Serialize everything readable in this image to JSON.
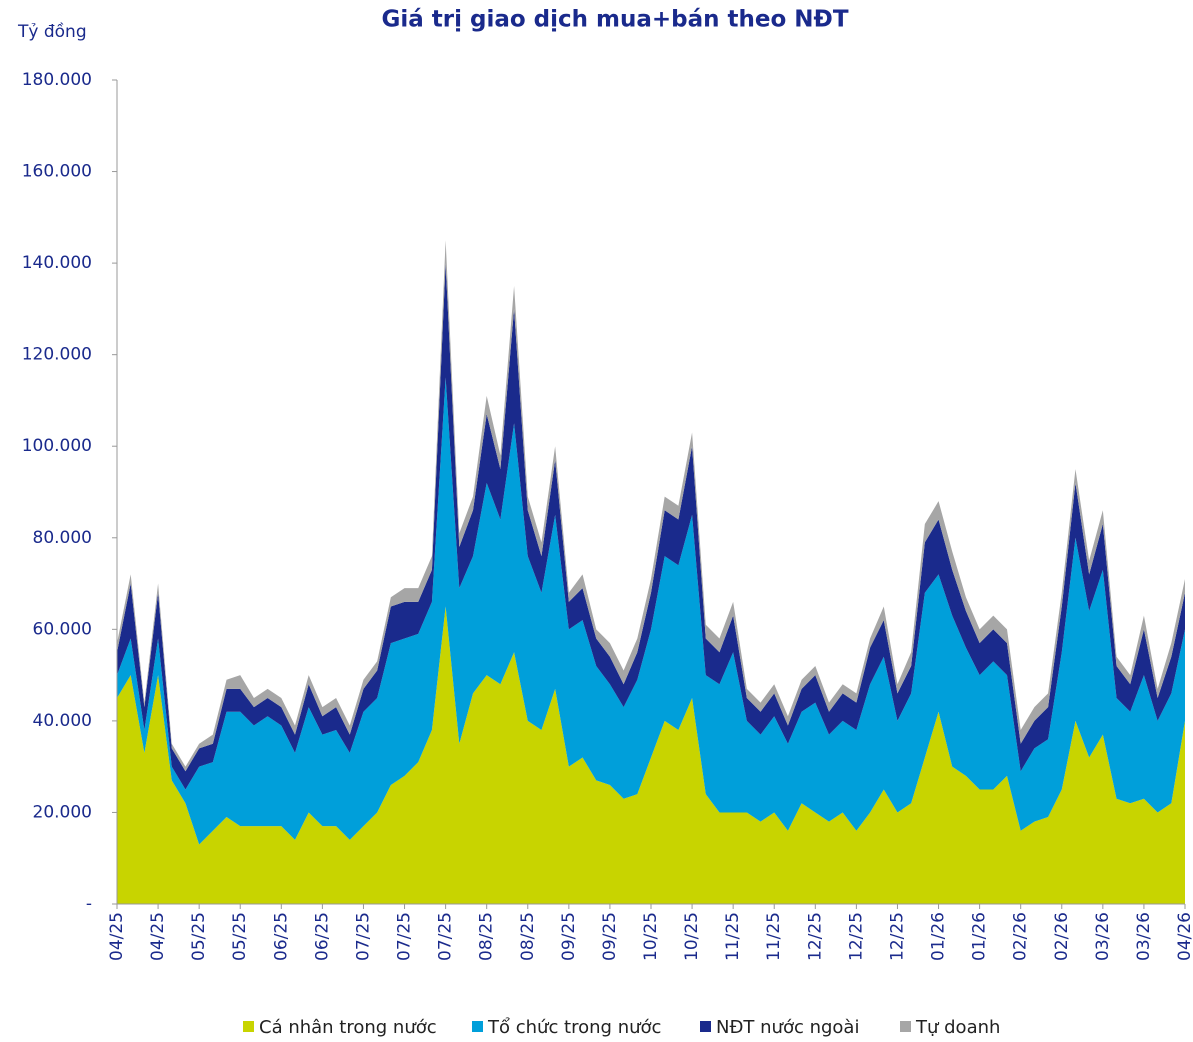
{
  "chart_data": {
    "type": "stacked_area",
    "title": "Giá trị giao dịch mua+bán theo NĐT",
    "y_axis_label": "Tỷ đồng",
    "categories": [
      "04/25",
      null,
      null,
      "04/25",
      null,
      null,
      "05/25",
      null,
      null,
      "05/25",
      null,
      null,
      "06/25",
      null,
      null,
      "06/25",
      null,
      null,
      "07/25",
      null,
      null,
      "07/25",
      null,
      null,
      "07/25",
      null,
      null,
      "08/25",
      null,
      null,
      "08/25",
      null,
      null,
      "09/25",
      null,
      null,
      "09/25",
      null,
      null,
      "10/25",
      null,
      null,
      "10/25",
      null,
      null,
      "11/25",
      null,
      null,
      "11/25",
      null,
      null,
      "12/25",
      null,
      null,
      "12/25",
      null,
      null,
      "12/25",
      null,
      null,
      "01/26",
      null,
      null,
      "01/26",
      null,
      null,
      "02/26",
      null,
      null,
      "02/26",
      null,
      null,
      "03/26",
      null,
      null,
      "03/26",
      null,
      null,
      "04/26"
    ],
    "series": [
      {
        "name": "Cá nhân trong nước",
        "color": "#c8d400",
        "values": [
          45000,
          50000,
          33000,
          50000,
          27000,
          22000,
          13000,
          16000,
          19000,
          17000,
          17000,
          17000,
          17000,
          14000,
          20000,
          17000,
          17000,
          14000,
          17000,
          20000,
          26000,
          28000,
          31000,
          38000,
          65000,
          35000,
          46000,
          50000,
          48000,
          55000,
          40000,
          38000,
          47000,
          30000,
          32000,
          27000,
          26000,
          23000,
          24000,
          32000,
          40000,
          38000,
          45000,
          24000,
          20000,
          20000,
          20000,
          18000,
          20000,
          16000,
          22000,
          20000,
          18000,
          20000,
          16000,
          20000,
          25000,
          20000,
          22000,
          32000,
          42000,
          30000,
          28000,
          25000,
          25000,
          28000,
          16000,
          18000,
          19000,
          25000,
          40000,
          32000,
          37000,
          23000,
          22000,
          23000,
          20000,
          22000,
          40000
        ]
      },
      {
        "name": "Tổ chức trong nước",
        "color": "#009fda",
        "values": [
          5000,
          8000,
          5000,
          8000,
          3000,
          3000,
          17000,
          15000,
          23000,
          25000,
          22000,
          24000,
          22000,
          19000,
          23000,
          20000,
          21000,
          19000,
          25000,
          25000,
          31000,
          30000,
          28000,
          28000,
          50000,
          34000,
          30000,
          42000,
          36000,
          50000,
          36000,
          30000,
          38000,
          30000,
          30000,
          25000,
          22000,
          20000,
          25000,
          28000,
          36000,
          36000,
          40000,
          26000,
          28000,
          35000,
          20000,
          19000,
          21000,
          19000,
          20000,
          24000,
          19000,
          20000,
          22000,
          28000,
          29000,
          20000,
          24000,
          36000,
          30000,
          33000,
          28000,
          25000,
          28000,
          22000,
          13000,
          16000,
          17000,
          30000,
          40000,
          32000,
          36000,
          22000,
          20000,
          27000,
          20000,
          24000,
          20000
        ]
      },
      {
        "name": "NĐT nước ngoài",
        "color": "#1a2a8c",
        "values": [
          5000,
          12000,
          5000,
          10000,
          4000,
          4000,
          4000,
          4000,
          5000,
          5000,
          4000,
          4000,
          4000,
          4000,
          5000,
          4000,
          5000,
          4000,
          5000,
          6000,
          8000,
          8000,
          7000,
          7000,
          25000,
          9000,
          10000,
          15000,
          11000,
          25000,
          10000,
          8000,
          12000,
          6000,
          7000,
          6000,
          6000,
          5000,
          6000,
          8000,
          10000,
          10000,
          15000,
          8000,
          7000,
          8000,
          5000,
          5000,
          5000,
          4000,
          5000,
          6000,
          5000,
          6000,
          6000,
          8000,
          8000,
          6000,
          6000,
          11000,
          12000,
          10000,
          8000,
          7000,
          7000,
          7000,
          6000,
          6000,
          7000,
          10000,
          12000,
          8000,
          10000,
          7000,
          6000,
          10000,
          5000,
          8000,
          8000
        ]
      },
      {
        "name": "Tự doanh",
        "color": "#a6a6a6",
        "values": [
          2000,
          2000,
          1000,
          2000,
          1000,
          1000,
          1000,
          2000,
          2000,
          3000,
          2000,
          2000,
          2000,
          2000,
          2000,
          2000,
          2000,
          2000,
          2000,
          2000,
          2000,
          3000,
          3000,
          3000,
          5000,
          3000,
          3000,
          4000,
          3000,
          5000,
          3000,
          3000,
          3000,
          2000,
          3000,
          2000,
          3000,
          3000,
          3000,
          3000,
          3000,
          3000,
          3000,
          3000,
          3000,
          3000,
          2000,
          2000,
          2000,
          2000,
          2000,
          2000,
          2000,
          2000,
          2000,
          2000,
          3000,
          2000,
          3000,
          4000,
          4000,
          4000,
          3000,
          3000,
          3000,
          3000,
          3000,
          3000,
          3000,
          3000,
          3000,
          3000,
          3000,
          2000,
          2000,
          3000,
          2000,
          3000,
          3000
        ]
      }
    ],
    "ylim": [
      0,
      180000
    ],
    "yticks": [
      {
        "value": 0,
        "label": "-"
      },
      {
        "value": 20000,
        "label": "20.000"
      },
      {
        "value": 40000,
        "label": "40.000"
      },
      {
        "value": 60000,
        "label": "60.000"
      },
      {
        "value": 80000,
        "label": "80.000"
      },
      {
        "value": 100000,
        "label": "100.000"
      },
      {
        "value": 120000,
        "label": "120.000"
      },
      {
        "value": 140000,
        "label": "140.000"
      },
      {
        "value": 160000,
        "label": "160.000"
      },
      {
        "value": 180000,
        "label": "180.000"
      }
    ],
    "legend": "bottom"
  }
}
